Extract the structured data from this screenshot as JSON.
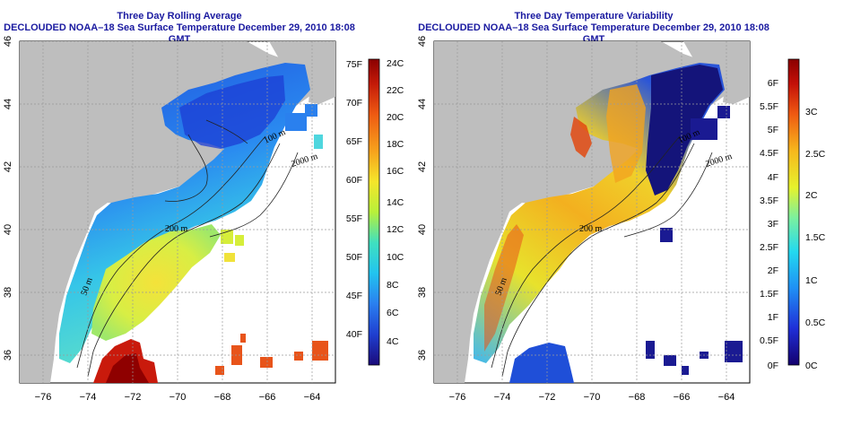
{
  "panels": [
    {
      "id": "rolling-average",
      "title": "Three Day Rolling Average",
      "subtitle": "DECLOUDED NOAA–18 Sea Surface Temperature December 29, 2010 18:08 GMT",
      "colorbar": {
        "left_labels": [
          "75F",
          "70F",
          "65F",
          "60F",
          "55F",
          "50F",
          "45F",
          "40F"
        ],
        "right_labels": [
          "24C",
          "22C",
          "20C",
          "18C",
          "16C",
          "14C",
          "12C",
          "10C",
          "8C",
          "6C",
          "4C"
        ],
        "colors": [
          "#1a0a7a",
          "#1f3fd0",
          "#2a7ff0",
          "#22c4ef",
          "#3fe0c0",
          "#b8f03a",
          "#f5e62a",
          "#f7a21c",
          "#ee5a12",
          "#c41a08",
          "#8a0000"
        ]
      }
    },
    {
      "id": "temperature-variability",
      "title": "Three Day Temperature Variability",
      "subtitle": "DECLOUDED NOAA–18 Sea Surface Temperature December 29, 2010 18:08 GMT",
      "colorbar": {
        "left_labels": [
          "6F",
          "5.5F",
          "5F",
          "4.5F",
          "4F",
          "3.5F",
          "3F",
          "2.5F",
          "2F",
          "1.5F",
          "1F",
          "0.5F",
          "0F"
        ],
        "right_labels": [
          "3C",
          "2.5C",
          "2C",
          "1.5C",
          "1C",
          "0.5C",
          "0C"
        ],
        "colors": [
          "#14006e",
          "#1f2fd8",
          "#1f8ff5",
          "#22d9f0",
          "#7af0a0",
          "#e6f22c",
          "#f7b81c",
          "#ef5a12",
          "#c41008",
          "#8a0000"
        ]
      }
    }
  ],
  "axes": {
    "x_ticks": [
      "−76",
      "−74",
      "−72",
      "−70",
      "−68",
      "−66",
      "−64"
    ],
    "y_ticks": [
      "46",
      "44",
      "42",
      "40",
      "38",
      "36"
    ]
  },
  "contour_labels": [
    "100 m",
    "200 m",
    "2000 m",
    "200 m",
    "50 m"
  ],
  "palette": {
    "land": "#bebebe",
    "ocean_nodata": "#ffffff",
    "title_color": "#1a1aa0"
  }
}
